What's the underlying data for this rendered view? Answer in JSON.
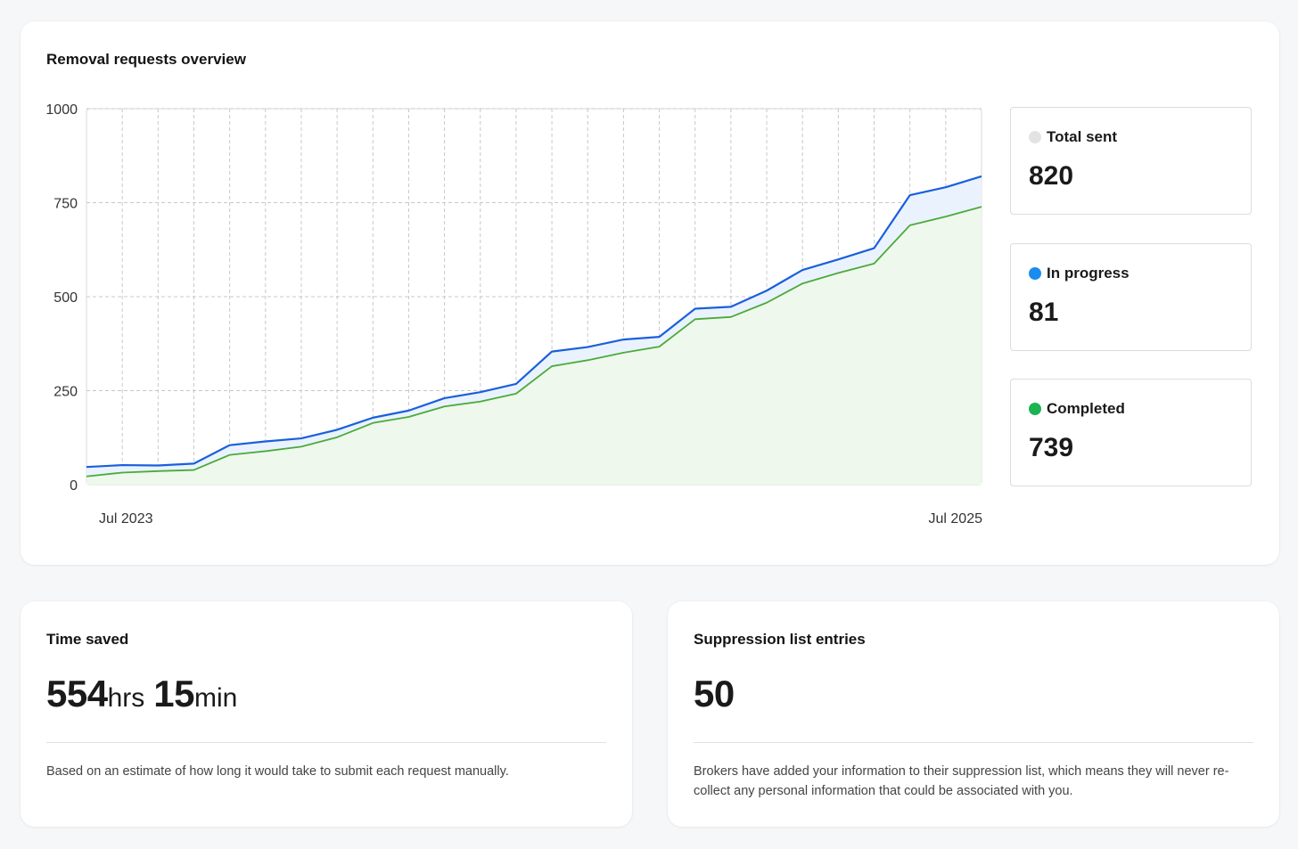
{
  "overview": {
    "title": "Removal requests overview",
    "stats": [
      {
        "label": "Total sent",
        "value": "820",
        "color": "#e3e3e3"
      },
      {
        "label": "In progress",
        "value": "81",
        "color": "#1a8cf0"
      },
      {
        "label": "Completed",
        "value": "739",
        "color": "#1db352"
      }
    ]
  },
  "chart_data": {
    "type": "area",
    "title": "Removal requests overview",
    "x_start_label": "Jul 2023",
    "x_end_label": "Jul 2025",
    "ylim": [
      0,
      1000
    ],
    "yticks": [
      0,
      250,
      500,
      750,
      1000
    ],
    "grid": true,
    "colors": {
      "sent_line": "#1a5fdc",
      "sent_fill": "#eaf3fd",
      "completed_line": "#4caa3a",
      "completed_fill": "#eef8ec",
      "grid": "#c8c8c8"
    },
    "series": [
      {
        "name": "Total sent",
        "values": [
          47,
          52,
          51,
          56,
          105,
          115,
          123,
          146,
          178,
          197,
          230,
          246,
          268,
          354,
          366,
          386,
          393,
          468,
          473,
          516,
          571,
          599,
          629,
          770,
          791,
          820
        ]
      },
      {
        "name": "Completed",
        "values": [
          22,
          32,
          36,
          39,
          79,
          89,
          101,
          126,
          164,
          180,
          208,
          221,
          242,
          315,
          331,
          351,
          367,
          440,
          446,
          484,
          535,
          563,
          588,
          690,
          713,
          739
        ]
      }
    ]
  },
  "time_saved": {
    "title": "Time saved",
    "hours": "554",
    "hours_unit": "hrs",
    "minutes": "15",
    "minutes_unit": "min",
    "description": "Based on an estimate of how long it would take to submit each request manually."
  },
  "suppression": {
    "title": "Suppression list entries",
    "value": "50",
    "description": "Brokers have added your information to their suppression list, which means they will never re-collect any personal information that could be associated with you."
  }
}
